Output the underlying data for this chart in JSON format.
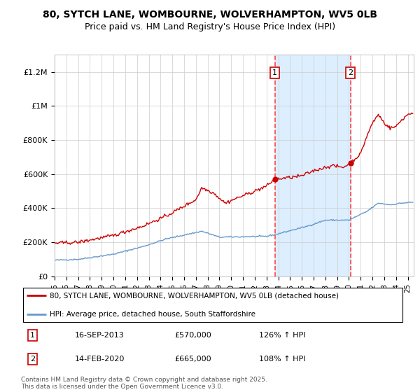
{
  "title_line1": "80, SYTCH LANE, WOMBOURNE, WOLVERHAMPTON, WV5 0LB",
  "title_line2": "Price paid vs. HM Land Registry's House Price Index (HPI)",
  "ylabel_ticks": [
    "£0",
    "£200K",
    "£400K",
    "£600K",
    "£800K",
    "£1M",
    "£1.2M"
  ],
  "ytick_values": [
    0,
    200000,
    400000,
    600000,
    800000,
    1000000,
    1200000
  ],
  "ylim": [
    0,
    1300000
  ],
  "xlim_start": 1995,
  "xlim_end": 2025.5,
  "transaction1": {
    "date_num": 2013.71,
    "price": 570000,
    "label": "1",
    "date_str": "16-SEP-2013",
    "pct": "126% ↑ HPI"
  },
  "transaction2": {
    "date_num": 2020.12,
    "price": 665000,
    "label": "2",
    "date_str": "14-FEB-2020",
    "pct": "108% ↑ HPI"
  },
  "legend_line1": "80, SYTCH LANE, WOMBOURNE, WOLVERHAMPTON, WV5 0LB (detached house)",
  "legend_line2": "HPI: Average price, detached house, South Staffordshire",
  "footer": "Contains HM Land Registry data © Crown copyright and database right 2025.\nThis data is licensed under the Open Government Licence v3.0.",
  "annot1_label": "1",
  "annot2_label": "2",
  "red_color": "#cc0000",
  "blue_color": "#6699cc",
  "shade_color": "#ddeeff",
  "grid_color": "#cccccc",
  "dashed_color": "#ff4444"
}
